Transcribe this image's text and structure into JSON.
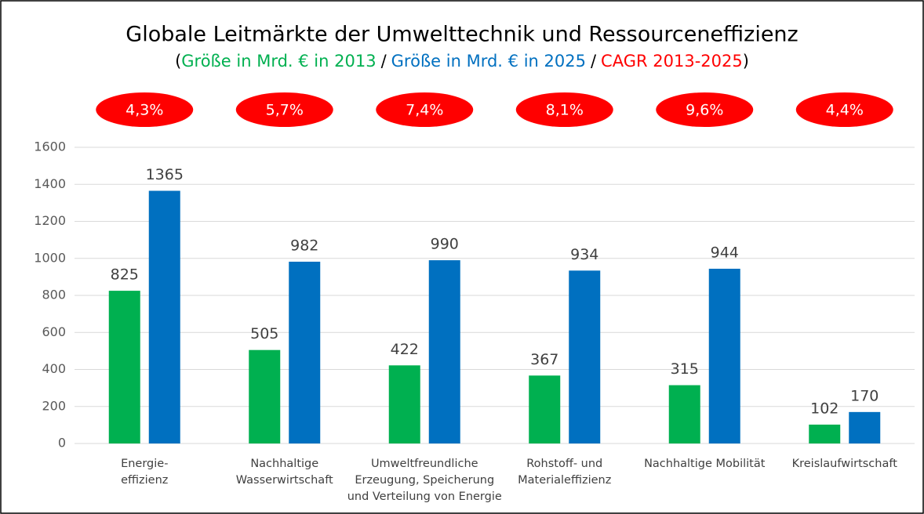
{
  "chart_data": {
    "type": "bar",
    "title": "Globale Leitmärkte der Umwelttechnik und Ressourceneffizienz",
    "subtitle_punctuation": [
      "(",
      "/",
      "/",
      ")"
    ],
    "categories": [
      [
        "Energie-",
        "effizienz"
      ],
      [
        "Nachhaltige",
        "Wasserwirtschaft"
      ],
      [
        "Umweltfreundliche",
        "Erzeugung, Speicherung",
        "und Verteilung von Energie"
      ],
      [
        "Rohstoff- und",
        "Materialeffizienz"
      ],
      [
        "Nachhaltige Mobilität"
      ],
      [
        "Kreislaufwirtschaft"
      ]
    ],
    "series": [
      {
        "name": "Größe in Mrd. € in 2013",
        "color": "#00b050",
        "values": [
          825,
          505,
          422,
          367,
          315,
          102
        ]
      },
      {
        "name": "Größe in Mrd. € in 2025",
        "color": "#0070c0",
        "values": [
          1365,
          982,
          990,
          934,
          944,
          170
        ]
      }
    ],
    "cagr": {
      "name": "CAGR 2013-2025",
      "color": "#ff0000",
      "values": [
        4.3,
        5.7,
        7.4,
        8.1,
        9.6,
        4.4
      ],
      "value_labels": [
        "4,3%",
        "5,7%",
        "7,4%",
        "8,1%",
        "9,6%",
        "4,4%"
      ]
    },
    "ylim": [
      0,
      1600
    ],
    "yticks": [
      0,
      200,
      400,
      600,
      800,
      1000,
      1200,
      1400,
      1600
    ],
    "grid": true
  }
}
